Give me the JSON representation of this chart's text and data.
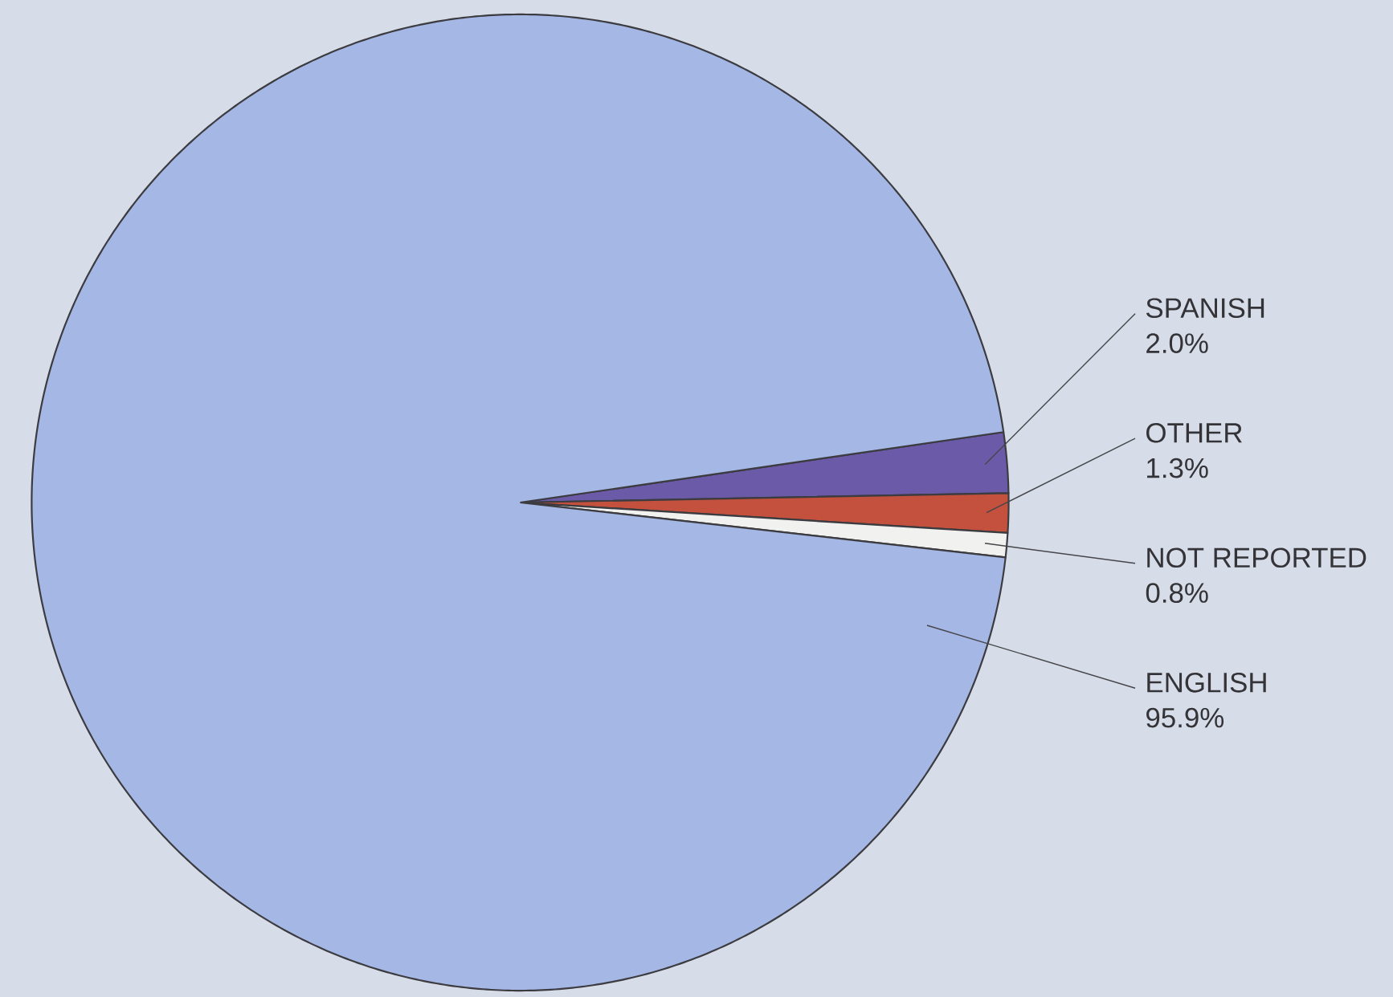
{
  "chart_data": {
    "type": "pie",
    "categories": [
      "SPANISH",
      "OTHER",
      "NOT REPORTED",
      "ENGLISH"
    ],
    "values": [
      2.0,
      1.3,
      0.8,
      95.9
    ],
    "colors": [
      "#6b5aa8",
      "#c4513d",
      "#f1f1ef",
      "#a5b7e5"
    ],
    "value_labels": [
      "2.0%",
      "1.3%",
      "0.8%",
      "95.9%"
    ]
  }
}
